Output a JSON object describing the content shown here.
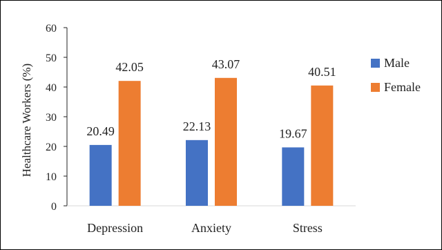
{
  "chart_data": {
    "type": "bar",
    "categories": [
      "Depression",
      "Anxiety",
      "Stress"
    ],
    "series": [
      {
        "name": "Male",
        "values": [
          20.49,
          22.13,
          19.67
        ],
        "color": "#4472C4"
      },
      {
        "name": "Female",
        "values": [
          42.05,
          43.07,
          40.51
        ],
        "color": "#ED7D31"
      }
    ],
    "title": "",
    "xlabel": "",
    "ylabel": "Healthcare Workers (%)",
    "ylim": [
      0,
      60
    ],
    "yticks": [
      0,
      10,
      20,
      30,
      40,
      50,
      60
    ],
    "grid": false,
    "legend_position": "right"
  }
}
